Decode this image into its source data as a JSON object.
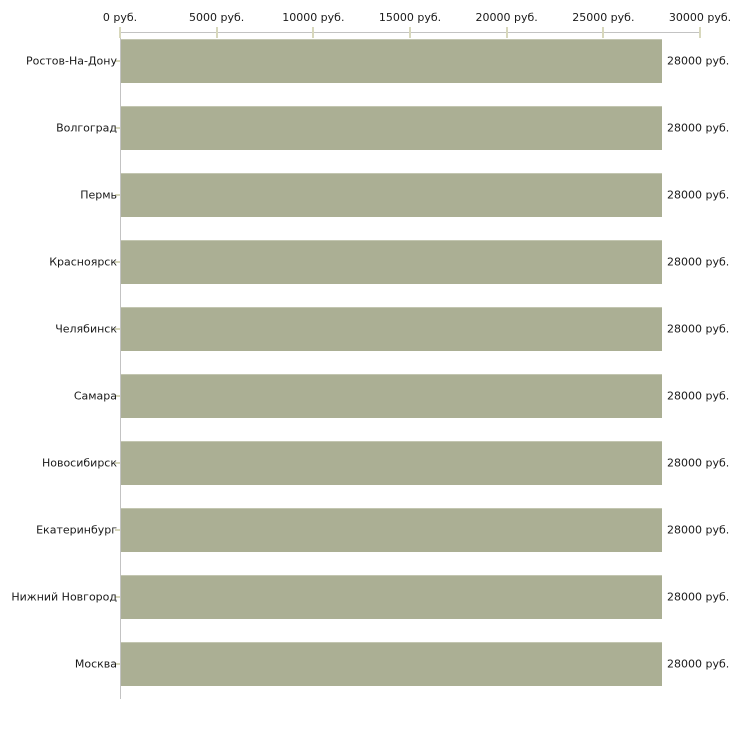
{
  "chart_data": {
    "type": "bar",
    "orientation": "horizontal",
    "title": "",
    "xlabel": "",
    "ylabel": "",
    "xlim": [
      0,
      30000
    ],
    "grid": false,
    "legend": false,
    "x_ticks": [
      0,
      5000,
      10000,
      15000,
      20000,
      25000,
      30000
    ],
    "x_tick_labels": [
      "0 руб.",
      "5000 руб.",
      "10000 руб.",
      "15000 руб.",
      "20000 руб.",
      "25000 руб.",
      "30000 руб."
    ],
    "categories": [
      "Ростов-На-Дону",
      "Волгоград",
      "Пермь",
      "Красноярск",
      "Челябинск",
      "Самара",
      "Новосибирск",
      "Екатеринбург",
      "Нижний Новгород",
      "Москва"
    ],
    "values": [
      28000,
      28000,
      28000,
      28000,
      28000,
      28000,
      28000,
      28000,
      28000,
      28000
    ],
    "value_labels": [
      "28000 руб.",
      "28000 руб.",
      "28000 руб.",
      "28000 руб.",
      "28000 руб.",
      "28000 руб.",
      "28000 руб.",
      "28000 руб.",
      "28000 руб.",
      "28000 руб."
    ],
    "colors": {
      "bar_fill": "#abaf94",
      "bar_edge": "#c3c6b1",
      "axis_line": "#c3c3c3",
      "tick_mark": "#d8d8bc",
      "text": "#1a1a1a",
      "background": "#ffffff"
    }
  }
}
